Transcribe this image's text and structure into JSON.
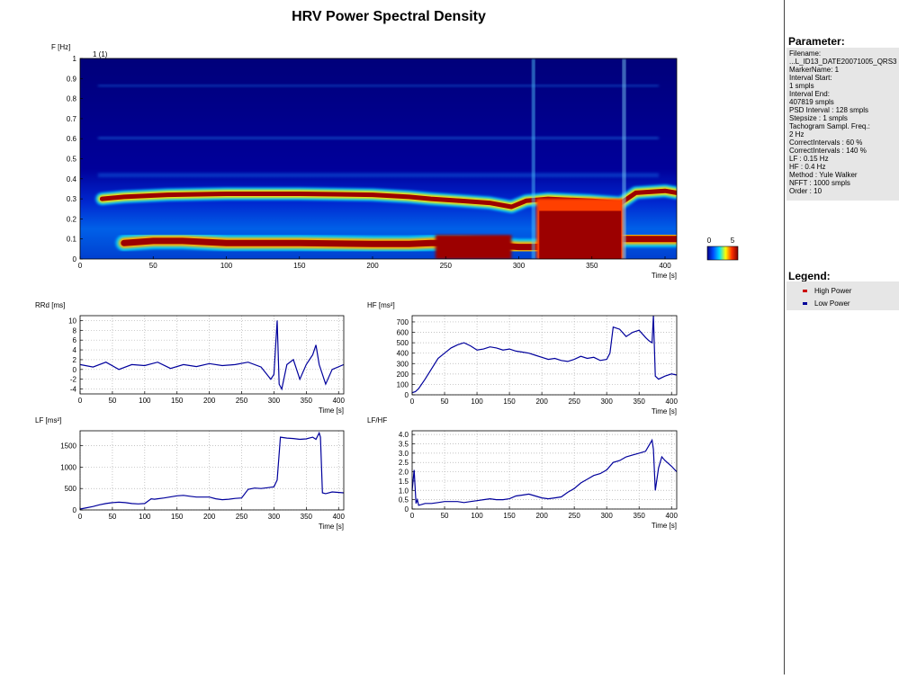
{
  "page": {
    "title": "HRV Power Spectral Density"
  },
  "chart_data": [
    {
      "id": "spectrogram",
      "type": "heatmap",
      "ylabel": "F [Hz]",
      "xlabel": "Time [s]",
      "marker_label": "1 (1)",
      "xlim": [
        0,
        408
      ],
      "ylim": [
        0,
        1
      ],
      "xticks": [
        "0",
        "50",
        "100",
        "150",
        "200",
        "250",
        "300",
        "350",
        "400"
      ],
      "yticks": [
        "0",
        "0.1",
        "0.2",
        "0.3",
        "0.4",
        "0.5",
        "0.6",
        "0.7",
        "0.8",
        "0.9",
        "1"
      ],
      "colorbar": {
        "min": "0",
        "max": "5"
      },
      "bands": [
        {
          "name": "HF band",
          "t": [
            15,
            30,
            60,
            100,
            150,
            200,
            225,
            240,
            260,
            280,
            295,
            305,
            320,
            350,
            370,
            380,
            400,
            408
          ],
          "f": [
            0.3,
            0.31,
            0.32,
            0.325,
            0.325,
            0.32,
            0.31,
            0.3,
            0.29,
            0.28,
            0.26,
            0.29,
            0.3,
            0.29,
            0.28,
            0.33,
            0.34,
            0.33
          ]
        },
        {
          "name": "LF band",
          "t": [
            30,
            50,
            70,
            100,
            115,
            150,
            200,
            225,
            240,
            260,
            300,
            310,
            350,
            370,
            380,
            408
          ],
          "f": [
            0.08,
            0.09,
            0.09,
            0.08,
            0.08,
            0.08,
            0.075,
            0.075,
            0.08,
            0.08,
            0.06,
            0.06,
            0.07,
            0.1,
            0.1,
            0.1
          ]
        }
      ]
    },
    {
      "id": "rrd",
      "type": "line",
      "ylabel": "RRd [ms]",
      "xlabel": "Time [s]",
      "xlim": [
        0,
        408
      ],
      "ylim": [
        -5,
        11
      ],
      "xticks": [
        "0",
        "50",
        "100",
        "150",
        "200",
        "250",
        "300",
        "350",
        "400"
      ],
      "yticks": [
        "-4",
        "-2",
        "0",
        "2",
        "4",
        "6",
        "8",
        "10"
      ],
      "series": [
        {
          "x": [
            0,
            20,
            40,
            60,
            80,
            100,
            120,
            140,
            160,
            180,
            200,
            220,
            240,
            260,
            280,
            295,
            300,
            305,
            308,
            312,
            320,
            330,
            340,
            350,
            360,
            365,
            370,
            380,
            390,
            408
          ],
          "y": [
            1,
            0.5,
            1.5,
            0,
            1,
            0.8,
            1.5,
            0.2,
            1,
            0.6,
            1.2,
            0.8,
            1,
            1.5,
            0.5,
            -2,
            -1,
            10,
            -3,
            -4,
            1,
            2,
            -2,
            1,
            3,
            5,
            1,
            -3,
            0,
            1
          ]
        }
      ]
    },
    {
      "id": "hf",
      "type": "line",
      "ylabel": "HF [ms²]",
      "xlabel": "Time [s]",
      "xlim": [
        0,
        408
      ],
      "ylim": [
        0,
        760
      ],
      "xticks": [
        "0",
        "50",
        "100",
        "150",
        "200",
        "250",
        "300",
        "350",
        "400"
      ],
      "yticks": [
        "0",
        "100",
        "200",
        "300",
        "400",
        "500",
        "600",
        "700"
      ],
      "series": [
        {
          "x": [
            0,
            5,
            10,
            20,
            30,
            40,
            50,
            60,
            70,
            80,
            90,
            100,
            110,
            120,
            130,
            140,
            150,
            160,
            170,
            180,
            190,
            200,
            210,
            220,
            230,
            240,
            250,
            260,
            270,
            280,
            290,
            300,
            305,
            310,
            320,
            330,
            340,
            350,
            360,
            365,
            370,
            372,
            375,
            380,
            390,
            400,
            408
          ],
          "y": [
            20,
            30,
            60,
            150,
            250,
            350,
            400,
            450,
            480,
            500,
            470,
            430,
            440,
            460,
            450,
            430,
            440,
            420,
            410,
            400,
            380,
            360,
            340,
            350,
            330,
            320,
            340,
            370,
            350,
            360,
            330,
            340,
            400,
            650,
            630,
            560,
            600,
            620,
            550,
            520,
            500,
            760,
            180,
            150,
            180,
            200,
            190
          ]
        }
      ]
    },
    {
      "id": "lf",
      "type": "line",
      "ylabel": "LF [ms²]",
      "xlabel": "Time [s]",
      "xlim": [
        0,
        408
      ],
      "ylim": [
        0,
        1850
      ],
      "xticks": [
        "0",
        "50",
        "100",
        "150",
        "200",
        "250",
        "300",
        "350",
        "400"
      ],
      "yticks": [
        "0",
        "500",
        "1000",
        "1500"
      ],
      "series": [
        {
          "x": [
            0,
            10,
            20,
            30,
            40,
            50,
            60,
            70,
            80,
            90,
            100,
            110,
            115,
            120,
            130,
            150,
            160,
            170,
            180,
            200,
            210,
            220,
            230,
            240,
            250,
            260,
            270,
            280,
            290,
            300,
            305,
            310,
            320,
            330,
            340,
            350,
            360,
            365,
            370,
            372,
            375,
            380,
            390,
            408
          ],
          "y": [
            20,
            50,
            80,
            120,
            150,
            170,
            180,
            170,
            150,
            140,
            150,
            260,
            250,
            260,
            280,
            330,
            340,
            320,
            300,
            300,
            260,
            240,
            250,
            270,
            280,
            480,
            510,
            500,
            520,
            540,
            700,
            1700,
            1680,
            1670,
            1650,
            1660,
            1700,
            1650,
            1800,
            1700,
            400,
            380,
            420,
            400
          ]
        }
      ]
    },
    {
      "id": "lfhf",
      "type": "line",
      "ylabel": "LF/HF",
      "xlabel": "Time [s]",
      "xlim": [
        0,
        408
      ],
      "ylim": [
        0,
        4.2
      ],
      "xticks": [
        "0",
        "50",
        "100",
        "150",
        "200",
        "250",
        "300",
        "350",
        "400"
      ],
      "yticks": [
        "0",
        "0.5",
        "1.0",
        "1.5",
        "2.0",
        "2.5",
        "3.0",
        "3.5",
        "4.0"
      ],
      "series": [
        {
          "x": [
            0,
            3,
            6,
            8,
            10,
            20,
            30,
            40,
            50,
            60,
            70,
            80,
            90,
            100,
            110,
            120,
            130,
            140,
            150,
            160,
            170,
            180,
            190,
            200,
            210,
            220,
            230,
            240,
            250,
            260,
            270,
            280,
            290,
            300,
            310,
            320,
            330,
            340,
            350,
            360,
            365,
            370,
            372,
            375,
            380,
            385,
            390,
            400,
            408
          ],
          "y": [
            1.0,
            2.1,
            0.3,
            0.5,
            0.2,
            0.3,
            0.3,
            0.35,
            0.4,
            0.4,
            0.4,
            0.35,
            0.4,
            0.45,
            0.5,
            0.55,
            0.5,
            0.5,
            0.55,
            0.7,
            0.75,
            0.8,
            0.7,
            0.6,
            0.55,
            0.6,
            0.65,
            0.9,
            1.1,
            1.4,
            1.6,
            1.8,
            1.9,
            2.1,
            2.5,
            2.6,
            2.8,
            2.9,
            3.0,
            3.1,
            3.4,
            3.7,
            3.2,
            1.0,
            2.2,
            2.8,
            2.6,
            2.3,
            2.0
          ]
        }
      ]
    }
  ],
  "sidebar": {
    "parameter_title": "Parameter:",
    "parameter_lines": [
      "Filename:",
      "...L_ID13_DATE20071005_QRS3",
      "MarkerName: 1",
      "Interval Start:",
      "1 smpls",
      "Interval End:",
      "407819 smpls",
      "PSD Interval : 128 smpls",
      "Stepsize : 1 smpls",
      "Tachogram Sampl. Freq.:",
      "2 Hz",
      "CorrectIntervals : 60 %",
      "CorrectIntervals : 140 %",
      "LF : 0.15 Hz",
      "HF : 0.4 Hz",
      "Method : Yule Walker",
      "NFFT : 1000 smpls",
      "Order : 10"
    ],
    "legend_title": "Legend:",
    "legend_items": [
      {
        "label": "High Power",
        "color": "#cc0000"
      },
      {
        "label": "Low Power",
        "color": "#000099"
      }
    ]
  }
}
